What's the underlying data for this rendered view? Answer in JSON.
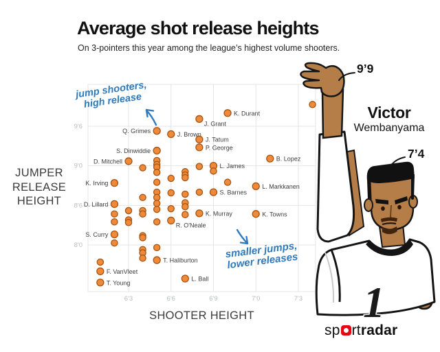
{
  "header": {
    "title": "Average shot release heights",
    "subtitle": "On 3-pointers this year among the league’s highest volume shooters."
  },
  "axes": {
    "y_title_lines": [
      "JUMPER",
      "RELEASE",
      "HEIGHT"
    ],
    "x_title": "SHOOTER HEIGHT",
    "x_ticks": [
      {
        "label": "6'3",
        "in": 75
      },
      {
        "label": "6'6",
        "in": 78
      },
      {
        "label": "6'9",
        "in": 81
      },
      {
        "label": "7'0",
        "in": 84
      },
      {
        "label": "7'3",
        "in": 87
      }
    ],
    "y_ticks": [
      {
        "label": "8'0",
        "in": 96
      },
      {
        "label": "8'6",
        "in": 102
      },
      {
        "label": "9'0",
        "in": 108
      },
      {
        "label": "9'6",
        "in": 114
      }
    ]
  },
  "annotations": {
    "top_line1": "jump shooters,",
    "top_line2": "high release",
    "bottom_line1": "smaller jumps,",
    "bottom_line2": "lower releases",
    "release_height": "9’9",
    "player_height": "7’4",
    "player_first": "Victor",
    "player_last": "Wembanyama"
  },
  "illustration": {
    "jersey_number": "1"
  },
  "logo": {
    "part1": "sp",
    "part2": "rt",
    "part3": "radar"
  },
  "colors": {
    "dot_fill": "#ED8A3B",
    "dot_stroke": "#A8530E",
    "grid": "#E4E4E6",
    "tick_text": "#B8BBBE",
    "label_text": "#3D3D3D",
    "annotation_blue": "#2E7ABC",
    "logo_red": "#E30613",
    "skin": "#B57E48",
    "ink": "#141414"
  },
  "chart_data": {
    "type": "scatter",
    "title": "Average shot release heights",
    "xlabel": "SHOOTER HEIGHT",
    "ylabel": "JUMPER RELEASE HEIGHT",
    "units": "inches",
    "x_tick_labels": [
      "6'3",
      "6'6",
      "6'9",
      "7'0",
      "7'3"
    ],
    "y_tick_labels": [
      "8'0",
      "8'6",
      "9'0",
      "9'6"
    ],
    "x_domain_in": [
      72.1,
      88.3
    ],
    "y_domain_in": [
      88.9,
      120.3
    ],
    "grid": true,
    "points": [
      {
        "name": "K. Durant",
        "sh": 82,
        "rh": 116.0,
        "label": "right"
      },
      {
        "name": "J. Grant",
        "sh": 80,
        "rh": 115.1,
        "label": "below-right"
      },
      {
        "name": "Q. Grimes",
        "sh": 77,
        "rh": 113.3,
        "label": "left"
      },
      {
        "name": "J. Brown",
        "sh": 78,
        "rh": 112.8,
        "label": "right"
      },
      {
        "name": "J. Tatum",
        "sh": 80,
        "rh": 112.0,
        "label": "right"
      },
      {
        "name": "P. George",
        "sh": 80,
        "rh": 110.8,
        "label": "right"
      },
      {
        "name": "S. Dinwiddie",
        "sh": 77,
        "rh": 110.3,
        "label": "left"
      },
      {
        "name": "D. Mitchell",
        "sh": 75,
        "rh": 108.7,
        "label": "left"
      },
      {
        "name": "B. Lopez",
        "sh": 85,
        "rh": 109.1,
        "label": "right"
      },
      {
        "name": "L. James",
        "sh": 81,
        "rh": 108.0,
        "label": "right"
      },
      {
        "name": "K. Irving",
        "sh": 74,
        "rh": 105.4,
        "label": "left"
      },
      {
        "name": "L. Markkanen",
        "sh": 84,
        "rh": 104.9,
        "label": "right"
      },
      {
        "name": "S. Barnes",
        "sh": 81,
        "rh": 104.0,
        "label": "right"
      },
      {
        "name": "D. Lillard",
        "sh": 74,
        "rh": 102.2,
        "label": "left"
      },
      {
        "name": "K. Murray",
        "sh": 80,
        "rh": 100.8,
        "label": "right"
      },
      {
        "name": "K. Towns",
        "sh": 84,
        "rh": 100.7,
        "label": "right"
      },
      {
        "name": "R. O'Neale",
        "sh": 78,
        "rh": 99.7,
        "label": "below-right"
      },
      {
        "name": "S. Curry",
        "sh": 74,
        "rh": 97.6,
        "label": "left"
      },
      {
        "name": "T. Haliburton",
        "sh": 77,
        "rh": 93.7,
        "label": "right"
      },
      {
        "name": "F. VanVleet",
        "sh": 73,
        "rh": 92.0,
        "label": "right"
      },
      {
        "name": "T. Young",
        "sh": 73,
        "rh": 90.3,
        "label": "right"
      },
      {
        "name": "L. Ball",
        "sh": 79,
        "rh": 90.9,
        "label": "right"
      },
      {
        "name": "",
        "sh": 88,
        "rh": 117.3,
        "label": "none"
      },
      {
        "name": "",
        "sh": 77,
        "rh": 108.8,
        "label": "none"
      },
      {
        "name": "",
        "sh": 77,
        "rh": 108.2,
        "label": "none"
      },
      {
        "name": "",
        "sh": 77,
        "rh": 107.8,
        "label": "none"
      },
      {
        "name": "",
        "sh": 77,
        "rh": 107.0,
        "label": "none"
      },
      {
        "name": "",
        "sh": 77,
        "rh": 105.5,
        "label": "none"
      },
      {
        "name": "",
        "sh": 77,
        "rh": 104.0,
        "label": "none"
      },
      {
        "name": "",
        "sh": 77,
        "rh": 103.2,
        "label": "none"
      },
      {
        "name": "",
        "sh": 77,
        "rh": 102.3,
        "label": "none"
      },
      {
        "name": "",
        "sh": 77,
        "rh": 101.4,
        "label": "none"
      },
      {
        "name": "",
        "sh": 77,
        "rh": 99.5,
        "label": "none"
      },
      {
        "name": "",
        "sh": 77,
        "rh": 95.6,
        "label": "none"
      },
      {
        "name": "",
        "sh": 76,
        "rh": 107.7,
        "label": "none"
      },
      {
        "name": "",
        "sh": 76,
        "rh": 103.2,
        "label": "none"
      },
      {
        "name": "",
        "sh": 76,
        "rh": 101.2,
        "label": "none"
      },
      {
        "name": "",
        "sh": 76,
        "rh": 100.7,
        "label": "none"
      },
      {
        "name": "",
        "sh": 76,
        "rh": 97.4,
        "label": "none"
      },
      {
        "name": "",
        "sh": 76,
        "rh": 97.1,
        "label": "none"
      },
      {
        "name": "",
        "sh": 76,
        "rh": 95.3,
        "label": "none"
      },
      {
        "name": "",
        "sh": 76,
        "rh": 94.8,
        "label": "none"
      },
      {
        "name": "",
        "sh": 76,
        "rh": 94.0,
        "label": "none"
      },
      {
        "name": "",
        "sh": 79,
        "rh": 107.1,
        "label": "none"
      },
      {
        "name": "",
        "sh": 79,
        "rh": 106.6,
        "label": "none"
      },
      {
        "name": "",
        "sh": 79,
        "rh": 106.2,
        "label": "none"
      },
      {
        "name": "",
        "sh": 79,
        "rh": 103.7,
        "label": "none"
      },
      {
        "name": "",
        "sh": 79,
        "rh": 102.4,
        "label": "none"
      },
      {
        "name": "",
        "sh": 79,
        "rh": 101.8,
        "label": "none"
      },
      {
        "name": "",
        "sh": 79,
        "rh": 100.6,
        "label": "none"
      },
      {
        "name": "",
        "sh": 78,
        "rh": 106.1,
        "label": "none"
      },
      {
        "name": "",
        "sh": 78,
        "rh": 103.9,
        "label": "none"
      },
      {
        "name": "",
        "sh": 78,
        "rh": 101.5,
        "label": "none"
      },
      {
        "name": "",
        "sh": 75,
        "rh": 101.2,
        "label": "none"
      },
      {
        "name": "",
        "sh": 75,
        "rh": 99.8,
        "label": "none"
      },
      {
        "name": "",
        "sh": 75,
        "rh": 99.4,
        "label": "none"
      },
      {
        "name": "",
        "sh": 74,
        "rh": 100.7,
        "label": "none"
      },
      {
        "name": "",
        "sh": 74,
        "rh": 99.5,
        "label": "none"
      },
      {
        "name": "",
        "sh": 74,
        "rh": 96.3,
        "label": "none"
      },
      {
        "name": "",
        "sh": 80,
        "rh": 107.9,
        "label": "none"
      },
      {
        "name": "",
        "sh": 80,
        "rh": 104.0,
        "label": "none"
      },
      {
        "name": "",
        "sh": 81,
        "rh": 107.2,
        "label": "none"
      },
      {
        "name": "",
        "sh": 82,
        "rh": 105.5,
        "label": "none"
      },
      {
        "name": "",
        "sh": 73,
        "rh": 93.4,
        "label": "none"
      }
    ]
  }
}
